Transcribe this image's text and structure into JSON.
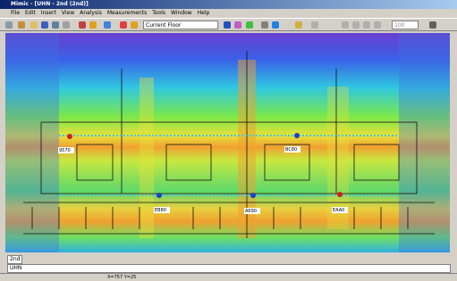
{
  "window": {
    "title": "Mimic - [UHN - 2nd (2nd)]"
  },
  "menu": [
    "File",
    "Edit",
    "Insert",
    "View",
    "Analysis",
    "Measurements",
    "Tools",
    "Window",
    "Help"
  ],
  "toolbar": {
    "floor_select": "Current Floor",
    "zoom": "100"
  },
  "map": {
    "labels": [
      "9570",
      "BC80",
      "EB80",
      "A690",
      "EAA0"
    ]
  },
  "tabs": [
    "2nd",
    "UHN"
  ],
  "status": {
    "coordinates": "X=757 Y=25"
  }
}
